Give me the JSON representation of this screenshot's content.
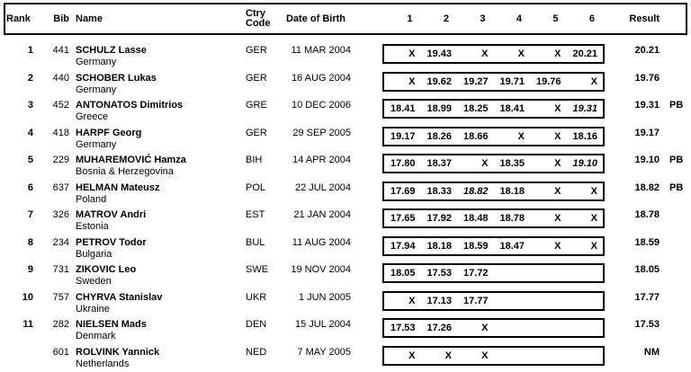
{
  "colors": {
    "text": "#000000",
    "border": "#000000",
    "background": "#ffffff"
  },
  "header": {
    "rank": "Rank",
    "bib": "Bib",
    "name": "Name",
    "ctry_line1": "Ctry",
    "ctry_line2": "Code",
    "dob": "Date of Birth",
    "attempts": [
      "1",
      "2",
      "3",
      "4",
      "5",
      "6"
    ],
    "result": "Result",
    "note": ""
  },
  "rows": [
    {
      "rank": "1",
      "bib": "441",
      "name": "SCHULZ Lasse",
      "country": "Germany",
      "ctry_code": "GER",
      "dob": "11 MAR 2004",
      "attempts": [
        {
          "v": "X"
        },
        {
          "v": "19.43"
        },
        {
          "v": "X"
        },
        {
          "v": "X"
        },
        {
          "v": "X"
        },
        {
          "v": "20.21"
        }
      ],
      "result": "20.21",
      "note": ""
    },
    {
      "rank": "2",
      "bib": "440",
      "name": "SCHOBER Lukas",
      "country": "Germany",
      "ctry_code": "GER",
      "dob": "16 AUG 2004",
      "attempts": [
        {
          "v": "X"
        },
        {
          "v": "19.62"
        },
        {
          "v": "19.27"
        },
        {
          "v": "19.71"
        },
        {
          "v": "19.76"
        },
        {
          "v": "X"
        }
      ],
      "result": "19.76",
      "note": ""
    },
    {
      "rank": "3",
      "bib": "452",
      "name": "ANTONATOS Dimitrios",
      "country": "Greece",
      "ctry_code": "GRE",
      "dob": "10 DEC 2006",
      "attempts": [
        {
          "v": "18.41"
        },
        {
          "v": "18.99"
        },
        {
          "v": "18.25"
        },
        {
          "v": "18.41"
        },
        {
          "v": "X"
        },
        {
          "v": "19.31",
          "italic": true
        }
      ],
      "result": "19.31",
      "note": "PB"
    },
    {
      "rank": "4",
      "bib": "418",
      "name": "HARPF Georg",
      "country": "Germany",
      "ctry_code": "GER",
      "dob": "29 SEP 2005",
      "attempts": [
        {
          "v": "19.17"
        },
        {
          "v": "18.26"
        },
        {
          "v": "18.66"
        },
        {
          "v": "X"
        },
        {
          "v": "X"
        },
        {
          "v": "18.16"
        }
      ],
      "result": "19.17",
      "note": ""
    },
    {
      "rank": "5",
      "bib": "229",
      "name": "MUHAREMOVIĆ Hamza",
      "country": "Bosnia & Herzegovina",
      "ctry_code": "BIH",
      "dob": "14 APR 2004",
      "attempts": [
        {
          "v": "17.80"
        },
        {
          "v": "18.37"
        },
        {
          "v": "X"
        },
        {
          "v": "18.35"
        },
        {
          "v": "X"
        },
        {
          "v": "19.10",
          "italic": true
        }
      ],
      "result": "19.10",
      "note": "PB"
    },
    {
      "rank": "6",
      "bib": "637",
      "name": "HELMAN Mateusz",
      "country": "Poland",
      "ctry_code": "POL",
      "dob": "22 JUL 2004",
      "attempts": [
        {
          "v": "17.69"
        },
        {
          "v": "18.33"
        },
        {
          "v": "18.82",
          "italic": true
        },
        {
          "v": "18.18"
        },
        {
          "v": "X"
        },
        {
          "v": "X"
        }
      ],
      "result": "18.82",
      "note": "PB"
    },
    {
      "rank": "7",
      "bib": "326",
      "name": "MATROV Andri",
      "country": "Estonia",
      "ctry_code": "EST",
      "dob": "21 JAN 2004",
      "attempts": [
        {
          "v": "17.65"
        },
        {
          "v": "17.92"
        },
        {
          "v": "18.48"
        },
        {
          "v": "18.78"
        },
        {
          "v": "X"
        },
        {
          "v": "X"
        }
      ],
      "result": "18.78",
      "note": ""
    },
    {
      "rank": "8",
      "bib": "234",
      "name": "PETROV Todor",
      "country": "Bulgaria",
      "ctry_code": "BUL",
      "dob": "11 AUG 2004",
      "attempts": [
        {
          "v": "17.94"
        },
        {
          "v": "18.18"
        },
        {
          "v": "18.59"
        },
        {
          "v": "18.47"
        },
        {
          "v": "X"
        },
        {
          "v": "X"
        }
      ],
      "result": "18.59",
      "note": ""
    },
    {
      "rank": "9",
      "bib": "731",
      "name": "ZIKOVIC Leo",
      "country": "Sweden",
      "ctry_code": "SWE",
      "dob": "19 NOV 2004",
      "attempts": [
        {
          "v": "18.05"
        },
        {
          "v": "17.53"
        },
        {
          "v": "17.72"
        },
        {
          "v": ""
        },
        {
          "v": ""
        },
        {
          "v": ""
        }
      ],
      "result": "18.05",
      "note": ""
    },
    {
      "rank": "10",
      "bib": "757",
      "name": "CHYRVA Stanislav",
      "country": "Ukraine",
      "ctry_code": "UKR",
      "dob": "1 JUN 2005",
      "attempts": [
        {
          "v": "X"
        },
        {
          "v": "17.13"
        },
        {
          "v": "17.77"
        },
        {
          "v": ""
        },
        {
          "v": ""
        },
        {
          "v": ""
        }
      ],
      "result": "17.77",
      "note": ""
    },
    {
      "rank": "11",
      "bib": "282",
      "name": "NIELSEN Mads",
      "country": "Denmark",
      "ctry_code": "DEN",
      "dob": "15 JUL 2004",
      "attempts": [
        {
          "v": "17.53"
        },
        {
          "v": "17.26"
        },
        {
          "v": "X"
        },
        {
          "v": ""
        },
        {
          "v": ""
        },
        {
          "v": ""
        }
      ],
      "result": "17.53",
      "note": ""
    },
    {
      "rank": "",
      "bib": "601",
      "name": "ROLVINK Yannick",
      "country": "Netherlands",
      "ctry_code": "NED",
      "dob": "7 MAY 2005",
      "attempts": [
        {
          "v": "X"
        },
        {
          "v": "X"
        },
        {
          "v": "X"
        },
        {
          "v": ""
        },
        {
          "v": ""
        },
        {
          "v": ""
        }
      ],
      "result": "NM",
      "note": ""
    }
  ]
}
